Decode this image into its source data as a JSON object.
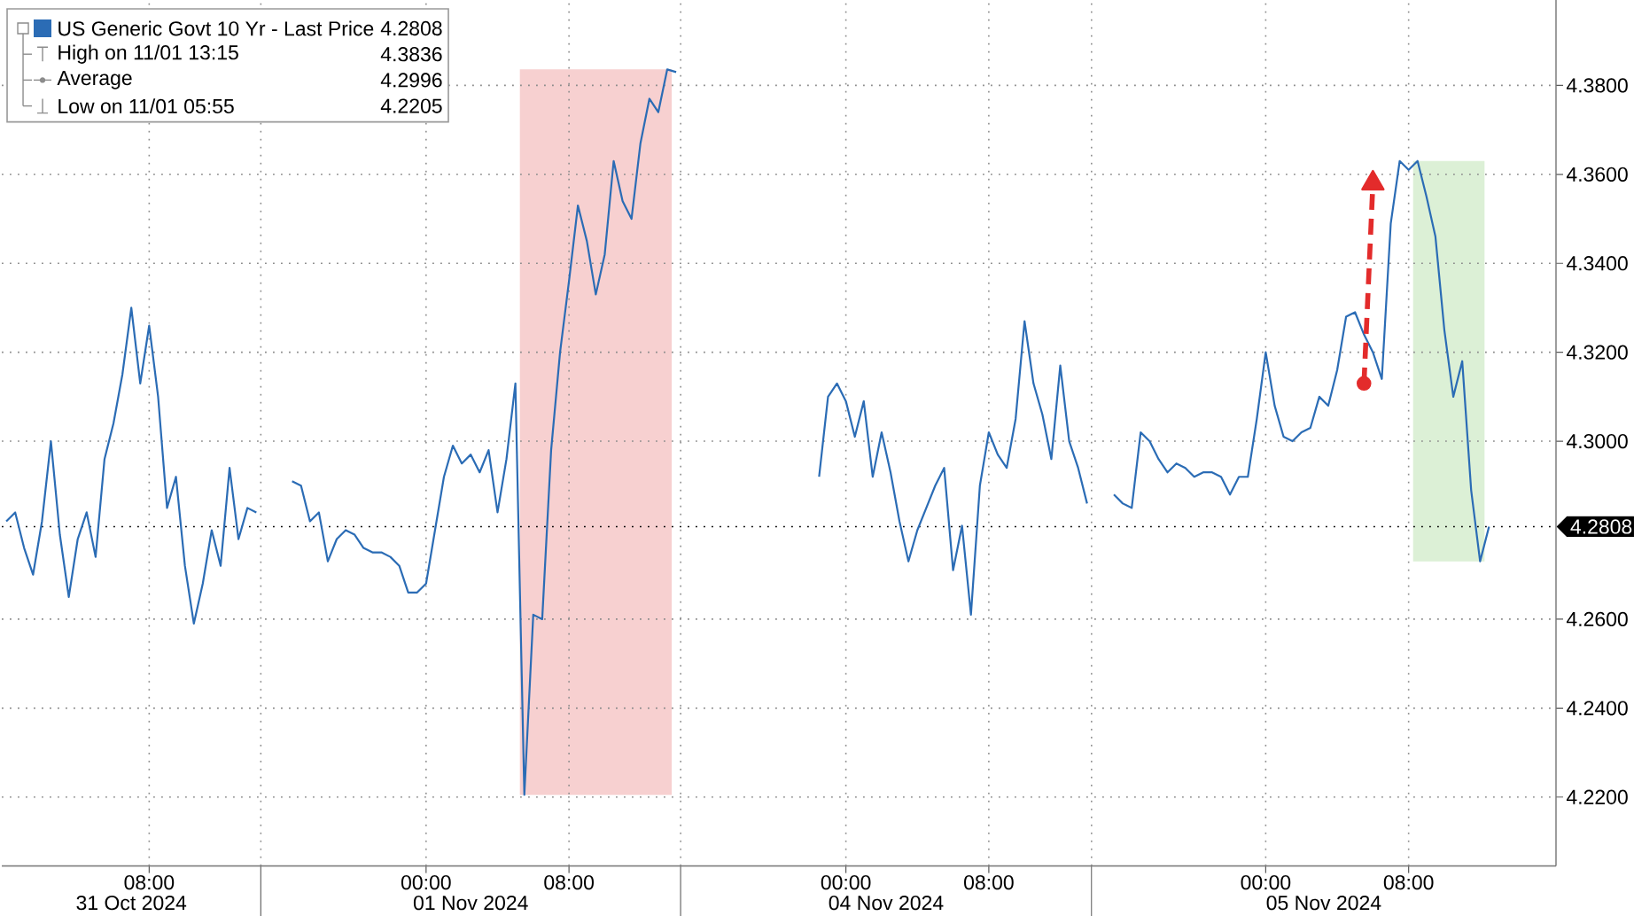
{
  "chart_data": {
    "type": "line",
    "categories": [
      null,
      null,
      null,
      null,
      null,
      null,
      null,
      null,
      null,
      null,
      null,
      null,
      null,
      null,
      null,
      null,
      "08:00",
      null,
      null,
      null,
      null,
      null,
      null,
      null,
      null,
      null,
      null,
      null,
      null,
      null,
      null,
      null,
      null,
      null,
      null,
      null,
      null,
      null,
      null,
      null,
      null,
      null,
      null,
      null,
      null,
      null,
      null,
      "00:00",
      null,
      null,
      null,
      null,
      null,
      null,
      null,
      null,
      null,
      null,
      null,
      null,
      null,
      null,
      null,
      "08:00",
      null,
      null,
      null,
      null,
      null,
      null,
      null,
      null,
      null,
      null,
      null,
      null,
      null,
      null,
      null,
      null,
      null,
      null,
      null,
      null,
      null,
      null,
      null,
      null,
      null,
      null,
      null,
      null,
      null,
      null,
      "00:00",
      null,
      null,
      null,
      null,
      null,
      null,
      null,
      null,
      null,
      null,
      null,
      null,
      null,
      null,
      null,
      "08:00",
      null,
      null,
      null,
      null,
      null,
      null,
      null,
      null,
      null,
      null,
      null,
      null,
      null,
      null,
      null,
      null,
      null,
      null,
      null,
      null,
      null,
      null,
      null,
      null,
      null,
      null,
      null,
      null,
      null,
      null,
      "00:00",
      null,
      null,
      null,
      null,
      null,
      null,
      null,
      null,
      null,
      null,
      null,
      null,
      null,
      null,
      null,
      "08:00",
      null,
      null,
      null,
      null,
      null,
      null,
      null,
      null,
      null,
      null,
      null,
      null,
      null,
      null,
      null,
      null
    ],
    "ylim": [
      4.2045,
      4.3992
    ],
    "yticks": [
      {
        "value": 4.22,
        "label": "4.2200"
      },
      {
        "value": 4.24,
        "label": "4.2400"
      },
      {
        "value": 4.26,
        "label": "4.2600"
      },
      {
        "value": 4.3,
        "label": "4.3000"
      },
      {
        "value": 4.32,
        "label": "4.3200"
      },
      {
        "value": 4.34,
        "label": "4.3400"
      },
      {
        "value": 4.36,
        "label": "4.3600"
      },
      {
        "value": 4.38,
        "label": "4.3800"
      }
    ],
    "grid": true,
    "legend": "top left",
    "series": [
      {
        "name": "US Generic Govt 10 Yr - Last Price",
        "color": "#2b6cb5",
        "values": [
          4.282,
          4.284,
          4.276,
          4.27,
          4.282,
          4.3,
          4.279,
          4.265,
          4.278,
          4.284,
          4.274,
          4.296,
          4.304,
          4.315,
          4.33,
          4.313,
          4.326,
          4.31,
          4.285,
          4.292,
          4.272,
          4.259,
          4.268,
          4.28,
          4.272,
          4.294,
          4.278,
          4.285,
          4.284,
          null,
          null,
          null,
          4.291,
          4.29,
          4.282,
          4.284,
          4.273,
          4.278,
          4.28,
          4.279,
          4.276,
          4.275,
          4.275,
          4.274,
          4.272,
          4.266,
          4.266,
          4.268,
          4.28,
          4.292,
          4.299,
          4.295,
          4.297,
          4.293,
          4.298,
          4.284,
          4.296,
          4.313,
          4.2205,
          4.261,
          4.26,
          4.298,
          4.32,
          4.336,
          4.353,
          4.345,
          4.333,
          4.342,
          4.363,
          4.354,
          4.35,
          4.367,
          4.377,
          4.374,
          4.3836,
          4.383,
          null,
          null,
          null,
          null,
          null,
          null,
          null,
          null,
          null,
          null,
          null,
          null,
          null,
          null,
          null,
          4.292,
          4.31,
          4.313,
          4.309,
          4.301,
          4.309,
          4.292,
          4.302,
          4.293,
          4.282,
          4.273,
          4.28,
          4.285,
          4.29,
          4.294,
          4.271,
          4.281,
          4.261,
          4.29,
          4.302,
          4.297,
          4.294,
          4.305,
          4.327,
          4.313,
          4.306,
          4.296,
          4.317,
          4.3,
          4.294,
          4.286,
          null,
          null,
          4.288,
          4.286,
          4.285,
          4.302,
          4.3,
          4.296,
          4.293,
          4.295,
          4.294,
          4.292,
          4.293,
          4.293,
          4.292,
          4.288,
          4.292,
          4.292,
          4.305,
          4.32,
          4.308,
          4.301,
          4.3,
          4.302,
          4.303,
          4.31,
          4.308,
          4.316,
          4.328,
          4.329,
          4.324,
          4.32,
          4.314,
          4.349,
          4.363,
          4.361,
          4.363,
          4.355,
          4.346,
          4.325,
          4.31,
          4.318,
          4.289,
          4.273,
          4.2808,
          null,
          null,
          null,
          null,
          null,
          null,
          null
        ]
      },
      {
        "type": "line",
        "color": "#e32b2b",
        "line_style": "dashed",
        "values": [
          null,
          null,
          null,
          null,
          null,
          null,
          null,
          null,
          null,
          null,
          null,
          null,
          null,
          null,
          null,
          null,
          null,
          null,
          null,
          null,
          null,
          null,
          null,
          null,
          null,
          null,
          null,
          null,
          null,
          null,
          null,
          null,
          null,
          null,
          null,
          null,
          null,
          null,
          null,
          null,
          null,
          null,
          null,
          null,
          null,
          null,
          null,
          null,
          null,
          null,
          null,
          null,
          null,
          null,
          null,
          null,
          null,
          null,
          null,
          null,
          null,
          null,
          null,
          null,
          null,
          null,
          null,
          null,
          null,
          null,
          null,
          null,
          null,
          null,
          null,
          null,
          null,
          null,
          null,
          null,
          null,
          null,
          null,
          null,
          null,
          null,
          null,
          null,
          null,
          null,
          null,
          null,
          null,
          null,
          null,
          null,
          null,
          null,
          null,
          null,
          null,
          null,
          null,
          null,
          null,
          null,
          null,
          null,
          null,
          null,
          null,
          null,
          null,
          null,
          null,
          null,
          null,
          null,
          null,
          null,
          null,
          null,
          null,
          null,
          null,
          null,
          null,
          null,
          null,
          null,
          null,
          null,
          null,
          null,
          null,
          null,
          null,
          null,
          null,
          null,
          null,
          null,
          null,
          null,
          null,
          null,
          null,
          null,
          null,
          null,
          null,
          null,
          4.313,
          4.358,
          null,
          null,
          null,
          null,
          null,
          null,
          null,
          null,
          null,
          null,
          null,
          null,
          null,
          null,
          null,
          null,
          null,
          null,
          null,
          null
        ]
      },
      {
        "type": "scatter",
        "color": "#e32b2b",
        "marker": "circle",
        "values": [
          null,
          null,
          null,
          null,
          null,
          null,
          null,
          null,
          null,
          null,
          null,
          null,
          null,
          null,
          null,
          null,
          null,
          null,
          null,
          null,
          null,
          null,
          null,
          null,
          null,
          null,
          null,
          null,
          null,
          null,
          null,
          null,
          null,
          null,
          null,
          null,
          null,
          null,
          null,
          null,
          null,
          null,
          null,
          null,
          null,
          null,
          null,
          null,
          null,
          null,
          null,
          null,
          null,
          null,
          null,
          null,
          null,
          null,
          null,
          null,
          null,
          null,
          null,
          null,
          null,
          null,
          null,
          null,
          null,
          null,
          null,
          null,
          null,
          null,
          null,
          null,
          null,
          null,
          null,
          null,
          null,
          null,
          null,
          null,
          null,
          null,
          null,
          null,
          null,
          null,
          null,
          null,
          null,
          null,
          null,
          null,
          null,
          null,
          null,
          null,
          null,
          null,
          null,
          null,
          null,
          null,
          null,
          null,
          null,
          null,
          null,
          null,
          null,
          null,
          null,
          null,
          null,
          null,
          null,
          null,
          null,
          null,
          null,
          null,
          null,
          null,
          null,
          null,
          null,
          null,
          null,
          null,
          null,
          null,
          null,
          null,
          null,
          null,
          null,
          null,
          null,
          null,
          null,
          null,
          null,
          null,
          null,
          null,
          null,
          null,
          null,
          null,
          4.313,
          null,
          null,
          null,
          null,
          null,
          null,
          null,
          null,
          null,
          null,
          null,
          null,
          null,
          null,
          null,
          null,
          null,
          null,
          null,
          null,
          null
        ]
      },
      {
        "type": "scatter",
        "color": "#e32b2b",
        "marker": "triangle",
        "values": [
          null,
          null,
          null,
          null,
          null,
          null,
          null,
          null,
          null,
          null,
          null,
          null,
          null,
          null,
          null,
          null,
          null,
          null,
          null,
          null,
          null,
          null,
          null,
          null,
          null,
          null,
          null,
          null,
          null,
          null,
          null,
          null,
          null,
          null,
          null,
          null,
          null,
          null,
          null,
          null,
          null,
          null,
          null,
          null,
          null,
          null,
          null,
          null,
          null,
          null,
          null,
          null,
          null,
          null,
          null,
          null,
          null,
          null,
          null,
          null,
          null,
          null,
          null,
          null,
          null,
          null,
          null,
          null,
          null,
          null,
          null,
          null,
          null,
          null,
          null,
          null,
          null,
          null,
          null,
          null,
          null,
          null,
          null,
          null,
          null,
          null,
          null,
          null,
          null,
          null,
          null,
          null,
          null,
          null,
          null,
          null,
          null,
          null,
          null,
          null,
          null,
          null,
          null,
          null,
          null,
          null,
          null,
          null,
          null,
          null,
          null,
          null,
          null,
          null,
          null,
          null,
          null,
          null,
          null,
          null,
          null,
          null,
          null,
          null,
          null,
          null,
          null,
          null,
          null,
          null,
          null,
          null,
          null,
          null,
          null,
          null,
          null,
          null,
          null,
          null,
          null,
          null,
          null,
          null,
          null,
          null,
          null,
          null,
          null,
          null,
          null,
          null,
          null,
          4.358,
          null,
          null,
          null,
          null,
          null,
          null,
          null,
          null,
          null,
          null,
          null,
          null,
          null,
          null,
          null,
          null,
          null,
          null,
          null,
          null
        ]
      }
    ],
    "ref_lines": [
      {
        "axis": "y",
        "value": 4.2808,
        "label": "4.2808",
        "line_style": "dotted"
      }
    ],
    "bands": [
      {
        "axis": "y",
        "from": 4.2205,
        "to": 4.3836,
        "color": "#f7d0d0"
      },
      {
        "axis": "y",
        "from": 4.273,
        "to": 4.363,
        "color": "#dcf0d6"
      }
    ],
    "annotations": [
      "31 Oct 2024",
      "01 Nov 2024",
      "04 Nov 2024",
      "05 Nov 2024",
      "4.2808",
      "High on 11/01 13:15",
      "4.3836",
      "Average",
      "4.2996",
      "Low on 11/01 05:55",
      "4.2205"
    ]
  }
}
